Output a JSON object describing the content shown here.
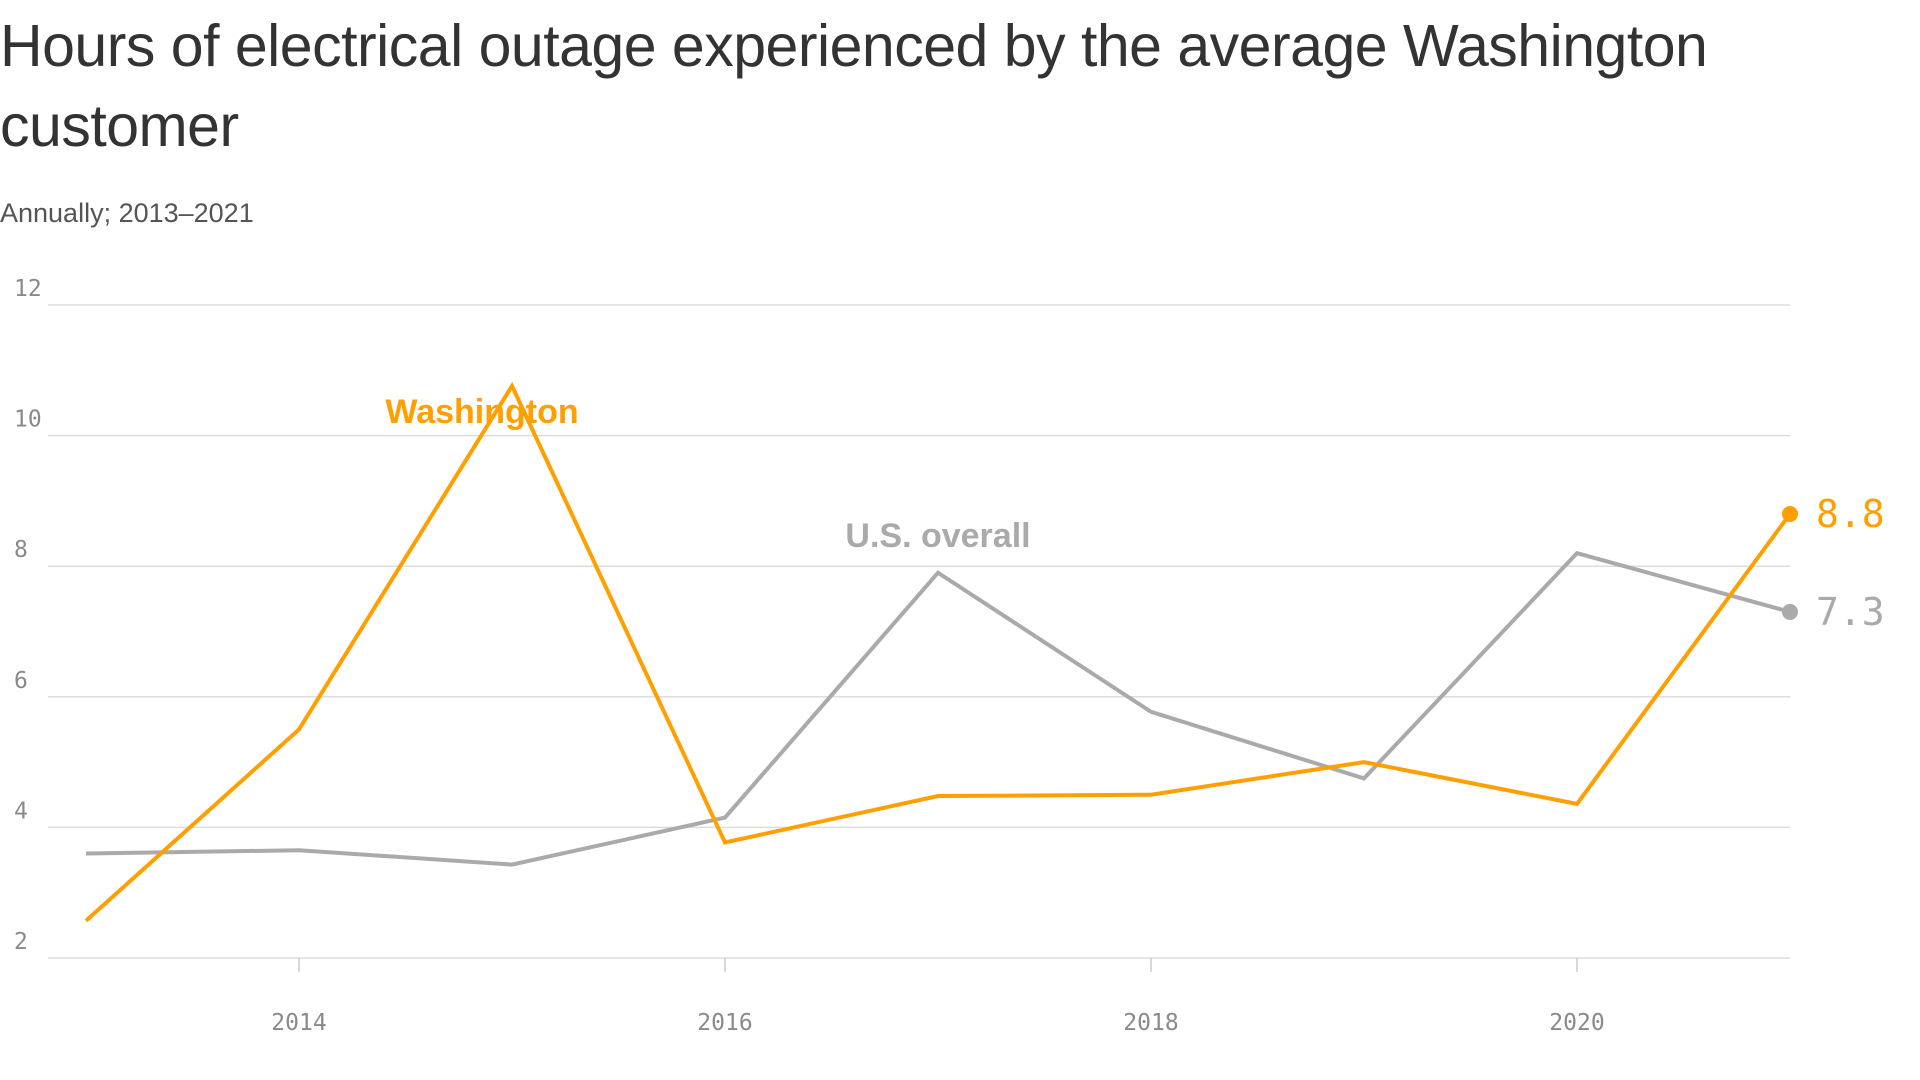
{
  "chart_data": {
    "type": "line",
    "title": "Hours of electrical outage experienced by the average Washington customer",
    "subtitle": "Annually; 2013–2021",
    "x": [
      2013,
      2014,
      2015,
      2016,
      2017,
      2018,
      2019,
      2020,
      2021
    ],
    "xlim": [
      2013,
      2021
    ],
    "xticks": [
      "2014",
      "2016",
      "2018",
      "2020"
    ],
    "ylim": [
      2,
      12
    ],
    "yticks": [
      "2",
      "4",
      "6",
      "8",
      "10",
      "12"
    ],
    "grid": "horizontal",
    "series": [
      {
        "name": "U.S. overall",
        "color": "#aaaaaa",
        "values": [
          3.6,
          3.65,
          3.43,
          4.15,
          7.9,
          5.77,
          4.75,
          8.2,
          7.3
        ],
        "end_label": "7.3"
      },
      {
        "name": "Washington",
        "color": "#ff9f00",
        "values": [
          2.57,
          5.5,
          10.76,
          3.77,
          4.48,
          4.5,
          5.0,
          4.36,
          8.8
        ],
        "end_label": "8.8"
      }
    ]
  }
}
